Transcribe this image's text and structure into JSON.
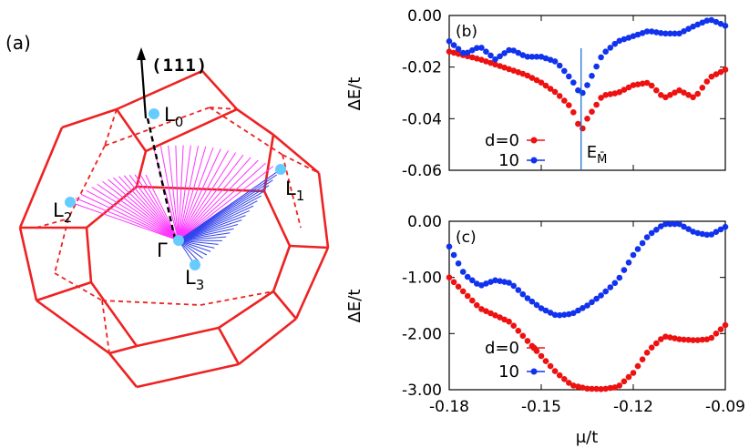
{
  "panel_a": {
    "label": "(a)",
    "direction": "(111)",
    "points": [
      {
        "name": "Γ",
        "sub": ""
      },
      {
        "name": "L",
        "sub": "0"
      },
      {
        "name": "L",
        "sub": "1"
      },
      {
        "name": "L",
        "sub": "2"
      },
      {
        "name": "L",
        "sub": "3"
      }
    ],
    "colors": {
      "edges": "#ee2222",
      "arrows_magenta": "#ff33ff",
      "arrows_blue": "#3344ee",
      "dots": "#66ccff"
    }
  },
  "chart_data": [
    {
      "type": "line",
      "panel_label": "(b)",
      "xlabel": "μ/t",
      "ylabel": "ΔE/t",
      "xlim": [
        -0.18,
        -0.09
      ],
      "ylim": [
        -0.06,
        0.0
      ],
      "yticks": [
        "0.00",
        "-0.02",
        "-0.04",
        "-0.06"
      ],
      "xticks": [],
      "annotation": {
        "text": "E",
        "sub": "M̄",
        "x": -0.137
      },
      "legend": {
        "position": "bottom-left"
      },
      "series": [
        {
          "name": "d=0",
          "color": "#ee1111",
          "x": [
            -0.18,
            -0.17,
            -0.16,
            -0.155,
            -0.15,
            -0.145,
            -0.14,
            -0.138,
            -0.137,
            -0.135,
            -0.13,
            -0.125,
            -0.12,
            -0.115,
            -0.11,
            -0.105,
            -0.1,
            -0.095,
            -0.09
          ],
          "y": [
            -0.014,
            -0.017,
            -0.021,
            -0.023,
            -0.026,
            -0.03,
            -0.036,
            -0.042,
            -0.045,
            -0.04,
            -0.031,
            -0.03,
            -0.027,
            -0.026,
            -0.032,
            -0.029,
            -0.032,
            -0.024,
            -0.021
          ]
        },
        {
          "name": "10",
          "color": "#1133ee",
          "x": [
            -0.18,
            -0.175,
            -0.17,
            -0.165,
            -0.16,
            -0.155,
            -0.15,
            -0.145,
            -0.14,
            -0.138,
            -0.137,
            -0.135,
            -0.13,
            -0.125,
            -0.12,
            -0.115,
            -0.11,
            -0.105,
            -0.1,
            -0.095,
            -0.09
          ],
          "y": [
            -0.01,
            -0.015,
            -0.012,
            -0.017,
            -0.013,
            -0.016,
            -0.016,
            -0.018,
            -0.025,
            -0.029,
            -0.031,
            -0.027,
            -0.015,
            -0.01,
            -0.008,
            -0.006,
            -0.007,
            -0.007,
            -0.004,
            -0.0015,
            -0.004
          ]
        }
      ]
    },
    {
      "type": "line",
      "panel_label": "(c)",
      "xlabel": "μ/t",
      "ylabel": "ΔE/t",
      "xlim": [
        -0.18,
        -0.09
      ],
      "ylim": [
        -3.0,
        0.0
      ],
      "yticks": [
        "0.00",
        "-1.00",
        "-2.00",
        "-3.00"
      ],
      "xticks": [
        "-0.18",
        "-0.15",
        "-0.12",
        "-0.09"
      ],
      "legend": {
        "position": "bottom-left"
      },
      "series": [
        {
          "name": "d=0",
          "color": "#ee1111",
          "x": [
            -0.18,
            -0.17,
            -0.16,
            -0.15,
            -0.145,
            -0.14,
            -0.135,
            -0.13,
            -0.125,
            -0.12,
            -0.115,
            -0.11,
            -0.105,
            -0.1,
            -0.095,
            -0.09
          ],
          "y": [
            -1.0,
            -1.55,
            -1.8,
            -2.4,
            -2.7,
            -2.92,
            -2.98,
            -2.99,
            -2.95,
            -2.7,
            -2.3,
            -2.05,
            -2.1,
            -2.12,
            -2.1,
            -1.85
          ]
        },
        {
          "name": "10",
          "color": "#1133ee",
          "x": [
            -0.18,
            -0.175,
            -0.17,
            -0.165,
            -0.16,
            -0.155,
            -0.15,
            -0.145,
            -0.14,
            -0.135,
            -0.13,
            -0.125,
            -0.12,
            -0.115,
            -0.11,
            -0.105,
            -0.1,
            -0.095,
            -0.09
          ],
          "y": [
            -0.45,
            -0.95,
            -1.15,
            -1.05,
            -1.1,
            -1.35,
            -1.55,
            -1.68,
            -1.65,
            -1.5,
            -1.3,
            -1.05,
            -0.6,
            -0.25,
            -0.05,
            -0.05,
            -0.2,
            -0.25,
            -0.1
          ]
        }
      ]
    }
  ]
}
